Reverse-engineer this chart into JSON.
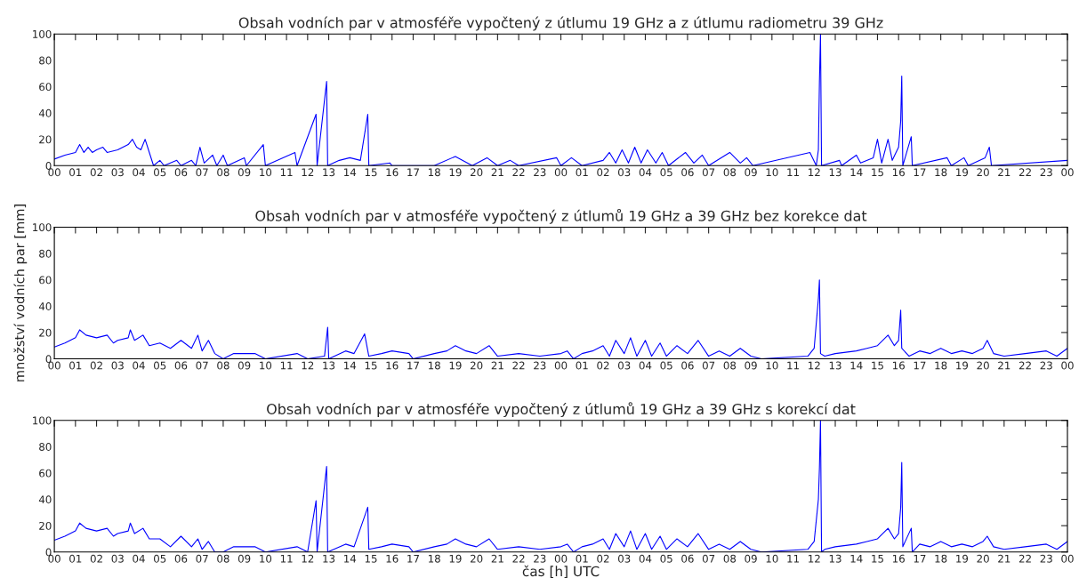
{
  "chart_data": [
    {
      "type": "line",
      "title": "Obsah vodních par v atmosféře vypočtený z útlumu 19 GHz a z útlumu radiometru 39 GHz",
      "grid": false,
      "legend": false,
      "xlim": [
        0,
        48
      ],
      "ylim": [
        0,
        100
      ],
      "yticks": [
        0,
        20,
        40,
        60,
        80,
        100
      ],
      "xticks": [
        {
          "value": 0,
          "label": "00"
        },
        {
          "value": 1,
          "label": "01"
        },
        {
          "value": 2,
          "label": "02"
        },
        {
          "value": 3,
          "label": "03"
        },
        {
          "value": 4,
          "label": "04"
        },
        {
          "value": 5,
          "label": "05"
        },
        {
          "value": 6,
          "label": "06"
        },
        {
          "value": 7,
          "label": "07"
        },
        {
          "value": 8,
          "label": "08"
        },
        {
          "value": 9,
          "label": "09"
        },
        {
          "value": 10,
          "label": "10"
        },
        {
          "value": 11,
          "label": "11"
        },
        {
          "value": 12,
          "label": "12"
        },
        {
          "value": 13,
          "label": "13"
        },
        {
          "value": 14,
          "label": "14"
        },
        {
          "value": 15,
          "label": "15"
        },
        {
          "value": 16,
          "label": "16"
        },
        {
          "value": 17,
          "label": "17"
        },
        {
          "value": 18,
          "label": "18"
        },
        {
          "value": 19,
          "label": "19"
        },
        {
          "value": 20,
          "label": "20"
        },
        {
          "value": 21,
          "label": "21"
        },
        {
          "value": 22,
          "label": "22"
        },
        {
          "value": 23,
          "label": "23"
        },
        {
          "value": 24,
          "label": "00"
        },
        {
          "value": 25,
          "label": "01"
        },
        {
          "value": 26,
          "label": "02"
        },
        {
          "value": 27,
          "label": "03"
        },
        {
          "value": 28,
          "label": "04"
        },
        {
          "value": 29,
          "label": "05"
        },
        {
          "value": 30,
          "label": "06"
        },
        {
          "value": 31,
          "label": "07"
        },
        {
          "value": 32,
          "label": "08"
        },
        {
          "value": 33,
          "label": "09"
        },
        {
          "value": 34,
          "label": "10"
        },
        {
          "value": 35,
          "label": "11"
        },
        {
          "value": 36,
          "label": "12"
        },
        {
          "value": 37,
          "label": "13"
        },
        {
          "value": 38,
          "label": "14"
        },
        {
          "value": 39,
          "label": "15"
        },
        {
          "value": 40,
          "label": "16"
        },
        {
          "value": 41,
          "label": "17"
        },
        {
          "value": 42,
          "label": "18"
        },
        {
          "value": 43,
          "label": "19"
        },
        {
          "value": 44,
          "label": "20"
        },
        {
          "value": 45,
          "label": "21"
        },
        {
          "value": 46,
          "label": "22"
        },
        {
          "value": 47,
          "label": "23"
        },
        {
          "value": 48,
          "label": "00"
        }
      ],
      "series": [
        {
          "color": "#0000ff",
          "x": [
            0,
            0.5,
            1,
            1.2,
            1.4,
            1.6,
            1.8,
            2,
            2.3,
            2.5,
            3,
            3.5,
            3.7,
            3.9,
            4.1,
            4.3,
            4.5,
            4.7,
            5,
            5.2,
            5.8,
            6,
            6.5,
            6.7,
            6.9,
            7.1,
            7.5,
            7.7,
            8,
            8.2,
            9,
            9.1,
            9.9,
            10,
            11.4,
            11.5,
            12.4,
            12.45,
            12.9,
            12.95,
            13.5,
            14,
            14.5,
            14.85,
            14.9,
            15.9,
            16,
            18,
            19,
            19.8,
            20.5,
            21,
            21.6,
            22,
            23.8,
            24,
            24.5,
            25,
            26,
            26.3,
            26.6,
            26.9,
            27.2,
            27.5,
            27.8,
            28.1,
            28.5,
            28.8,
            29.1,
            29.9,
            30.3,
            30.7,
            31,
            32,
            32.5,
            32.8,
            33.1,
            35.8,
            36.1,
            36.2,
            36.25,
            36.3,
            36.35,
            37.2,
            37.3,
            38,
            38.2,
            38.8,
            39,
            39.2,
            39.5,
            39.7,
            40,
            40.1,
            40.15,
            40.2,
            40.6,
            40.65,
            42.3,
            42.5,
            43.1,
            43.3,
            44.1,
            44.3,
            44.4,
            48
          ],
          "values": [
            5,
            8,
            10,
            16,
            10,
            14,
            10,
            12,
            14,
            10,
            12,
            16,
            20,
            14,
            12,
            20,
            10,
            0,
            4,
            0,
            4,
            0,
            4,
            0,
            14,
            2,
            8,
            0,
            8,
            0,
            6,
            0,
            16,
            0,
            10,
            0,
            39,
            0,
            64,
            0,
            4,
            6,
            4,
            39,
            0,
            2,
            0,
            0,
            7,
            0,
            6,
            0,
            4,
            0,
            6,
            0,
            6,
            0,
            4,
            10,
            2,
            12,
            2,
            14,
            2,
            12,
            2,
            10,
            0,
            10,
            2,
            8,
            0,
            10,
            2,
            6,
            0,
            10,
            0,
            12,
            64,
            100,
            0,
            4,
            0,
            8,
            2,
            6,
            20,
            2,
            20,
            4,
            14,
            34,
            68,
            0,
            22,
            0,
            6,
            0,
            6,
            0,
            6,
            14,
            0,
            4
          ]
        }
      ]
    },
    {
      "type": "line",
      "title": "Obsah vodních par v atmosféře vypočtený z útlumů 19 GHz a 39 GHz bez korekce dat",
      "ylabel": "množství vodních par [mm]",
      "grid": false,
      "legend": false,
      "xlim": [
        0,
        48
      ],
      "ylim": [
        0,
        100
      ],
      "yticks": [
        0,
        20,
        40,
        60,
        80,
        100
      ],
      "xticks": [
        {
          "value": 0,
          "label": "00"
        },
        {
          "value": 1,
          "label": "01"
        },
        {
          "value": 2,
          "label": "02"
        },
        {
          "value": 3,
          "label": "03"
        },
        {
          "value": 4,
          "label": "04"
        },
        {
          "value": 5,
          "label": "05"
        },
        {
          "value": 6,
          "label": "06"
        },
        {
          "value": 7,
          "label": "07"
        },
        {
          "value": 8,
          "label": "08"
        },
        {
          "value": 9,
          "label": "09"
        },
        {
          "value": 10,
          "label": "10"
        },
        {
          "value": 11,
          "label": "11"
        },
        {
          "value": 12,
          "label": "12"
        },
        {
          "value": 13,
          "label": "13"
        },
        {
          "value": 14,
          "label": "14"
        },
        {
          "value": 15,
          "label": "15"
        },
        {
          "value": 16,
          "label": "16"
        },
        {
          "value": 17,
          "label": "17"
        },
        {
          "value": 18,
          "label": "18"
        },
        {
          "value": 19,
          "label": "19"
        },
        {
          "value": 20,
          "label": "20"
        },
        {
          "value": 21,
          "label": "21"
        },
        {
          "value": 22,
          "label": "22"
        },
        {
          "value": 23,
          "label": "23"
        },
        {
          "value": 24,
          "label": "00"
        },
        {
          "value": 25,
          "label": "01"
        },
        {
          "value": 26,
          "label": "02"
        },
        {
          "value": 27,
          "label": "03"
        },
        {
          "value": 28,
          "label": "04"
        },
        {
          "value": 29,
          "label": "05"
        },
        {
          "value": 30,
          "label": "06"
        },
        {
          "value": 31,
          "label": "07"
        },
        {
          "value": 32,
          "label": "08"
        },
        {
          "value": 33,
          "label": "09"
        },
        {
          "value": 34,
          "label": "10"
        },
        {
          "value": 35,
          "label": "11"
        },
        {
          "value": 36,
          "label": "12"
        },
        {
          "value": 37,
          "label": "13"
        },
        {
          "value": 38,
          "label": "14"
        },
        {
          "value": 39,
          "label": "15"
        },
        {
          "value": 40,
          "label": "16"
        },
        {
          "value": 41,
          "label": "17"
        },
        {
          "value": 42,
          "label": "18"
        },
        {
          "value": 43,
          "label": "19"
        },
        {
          "value": 44,
          "label": "20"
        },
        {
          "value": 45,
          "label": "21"
        },
        {
          "value": 46,
          "label": "22"
        },
        {
          "value": 47,
          "label": "23"
        },
        {
          "value": 48,
          "label": "00"
        }
      ],
      "series": [
        {
          "color": "#0000ff",
          "x": [
            0,
            0.5,
            1,
            1.2,
            1.5,
            2,
            2.5,
            2.8,
            3,
            3.5,
            3.6,
            3.8,
            4.2,
            4.5,
            5,
            5.5,
            6,
            6.5,
            6.8,
            7,
            7.3,
            7.6,
            8,
            8.5,
            9.5,
            10,
            11.5,
            12,
            12.8,
            12.95,
            13,
            13.8,
            14.2,
            14.7,
            14.9,
            15.5,
            16,
            16.8,
            17,
            18,
            18.6,
            19,
            19.5,
            20,
            20.6,
            21,
            22,
            23,
            24,
            24.3,
            24.6,
            25,
            25.5,
            26,
            26.3,
            26.6,
            27,
            27.3,
            27.6,
            28,
            28.3,
            28.7,
            29,
            29.5,
            30,
            30.5,
            31,
            31.5,
            32,
            32.5,
            33,
            33.5,
            35.7,
            36,
            36.2,
            36.25,
            36.3,
            36.5,
            37,
            38,
            38.5,
            39,
            39.5,
            39.8,
            40,
            40.1,
            40.15,
            40.5,
            41,
            41.5,
            42,
            42.5,
            43,
            43.5,
            44,
            44.2,
            44.5,
            45,
            46,
            47,
            47.5,
            48
          ],
          "values": [
            9,
            12,
            16,
            22,
            18,
            16,
            18,
            12,
            14,
            16,
            22,
            14,
            18,
            10,
            12,
            8,
            14,
            8,
            18,
            6,
            14,
            4,
            0,
            4,
            4,
            0,
            4,
            0,
            2,
            24,
            0,
            6,
            4,
            19,
            2,
            4,
            6,
            4,
            0,
            4,
            6,
            10,
            6,
            4,
            10,
            2,
            4,
            2,
            4,
            6,
            0,
            4,
            6,
            10,
            2,
            14,
            4,
            16,
            2,
            14,
            2,
            12,
            2,
            10,
            4,
            14,
            2,
            6,
            2,
            8,
            2,
            0,
            2,
            8,
            46,
            60,
            4,
            2,
            4,
            6,
            8,
            10,
            18,
            10,
            14,
            37,
            8,
            2,
            6,
            4,
            8,
            4,
            6,
            4,
            8,
            14,
            4,
            2,
            4,
            6,
            2,
            8
          ]
        }
      ]
    },
    {
      "type": "line",
      "title": "Obsah vodních par v atmosféře vypočtený z útlumů 19 GHz a 39 GHz s korekcí dat",
      "xlabel": "čas [h] UTC",
      "grid": false,
      "legend": false,
      "xlim": [
        0,
        48
      ],
      "ylim": [
        0,
        100
      ],
      "yticks": [
        0,
        20,
        40,
        60,
        80,
        100
      ],
      "xticks": [
        {
          "value": 0,
          "label": "00"
        },
        {
          "value": 1,
          "label": "01"
        },
        {
          "value": 2,
          "label": "02"
        },
        {
          "value": 3,
          "label": "03"
        },
        {
          "value": 4,
          "label": "04"
        },
        {
          "value": 5,
          "label": "05"
        },
        {
          "value": 6,
          "label": "06"
        },
        {
          "value": 7,
          "label": "07"
        },
        {
          "value": 8,
          "label": "08"
        },
        {
          "value": 9,
          "label": "09"
        },
        {
          "value": 10,
          "label": "10"
        },
        {
          "value": 11,
          "label": "11"
        },
        {
          "value": 12,
          "label": "12"
        },
        {
          "value": 13,
          "label": "13"
        },
        {
          "value": 14,
          "label": "14"
        },
        {
          "value": 15,
          "label": "15"
        },
        {
          "value": 16,
          "label": "16"
        },
        {
          "value": 17,
          "label": "17"
        },
        {
          "value": 18,
          "label": "18"
        },
        {
          "value": 19,
          "label": "19"
        },
        {
          "value": 20,
          "label": "20"
        },
        {
          "value": 21,
          "label": "21"
        },
        {
          "value": 22,
          "label": "22"
        },
        {
          "value": 23,
          "label": "23"
        },
        {
          "value": 24,
          "label": "00"
        },
        {
          "value": 25,
          "label": "01"
        },
        {
          "value": 26,
          "label": "02"
        },
        {
          "value": 27,
          "label": "03"
        },
        {
          "value": 28,
          "label": "04"
        },
        {
          "value": 29,
          "label": "05"
        },
        {
          "value": 30,
          "label": "06"
        },
        {
          "value": 31,
          "label": "07"
        },
        {
          "value": 32,
          "label": "08"
        },
        {
          "value": 33,
          "label": "09"
        },
        {
          "value": 34,
          "label": "10"
        },
        {
          "value": 35,
          "label": "11"
        },
        {
          "value": 36,
          "label": "12"
        },
        {
          "value": 37,
          "label": "13"
        },
        {
          "value": 38,
          "label": "14"
        },
        {
          "value": 39,
          "label": "15"
        },
        {
          "value": 40,
          "label": "16"
        },
        {
          "value": 41,
          "label": "17"
        },
        {
          "value": 42,
          "label": "18"
        },
        {
          "value": 43,
          "label": "19"
        },
        {
          "value": 44,
          "label": "20"
        },
        {
          "value": 45,
          "label": "21"
        },
        {
          "value": 46,
          "label": "22"
        },
        {
          "value": 47,
          "label": "23"
        },
        {
          "value": 48,
          "label": "00"
        }
      ],
      "series": [
        {
          "color": "#0000ff",
          "x": [
            0,
            0.5,
            1,
            1.2,
            1.5,
            2,
            2.5,
            2.8,
            3,
            3.5,
            3.6,
            3.8,
            4.2,
            4.5,
            5,
            5.5,
            6,
            6.5,
            6.8,
            7,
            7.3,
            7.6,
            8,
            8.5,
            9.5,
            10,
            11.5,
            12,
            12.4,
            12.45,
            12.9,
            12.95,
            13.8,
            14.2,
            14.85,
            14.9,
            15.5,
            16,
            16.8,
            17,
            18,
            18.6,
            19,
            19.5,
            20,
            20.6,
            21,
            22,
            23,
            24,
            24.3,
            24.6,
            25,
            25.5,
            26,
            26.3,
            26.6,
            27,
            27.3,
            27.6,
            28,
            28.3,
            28.7,
            29,
            29.5,
            30,
            30.5,
            31,
            31.5,
            32,
            32.5,
            33,
            33.5,
            35.7,
            36,
            36.2,
            36.25,
            36.3,
            36.35,
            36.5,
            37,
            38,
            38.5,
            39,
            39.5,
            39.8,
            40,
            40.1,
            40.15,
            40.2,
            40.6,
            40.65,
            41,
            41.5,
            42,
            42.5,
            43,
            43.5,
            44,
            44.2,
            44.5,
            45,
            46,
            47,
            47.5,
            48
          ],
          "values": [
            9,
            12,
            16,
            22,
            18,
            16,
            18,
            12,
            14,
            16,
            22,
            14,
            18,
            10,
            10,
            4,
            12,
            4,
            10,
            2,
            8,
            0,
            0,
            4,
            4,
            0,
            4,
            0,
            39,
            0,
            65,
            0,
            6,
            4,
            34,
            2,
            4,
            6,
            4,
            0,
            4,
            6,
            10,
            6,
            4,
            10,
            2,
            4,
            2,
            4,
            6,
            0,
            4,
            6,
            10,
            2,
            14,
            4,
            16,
            2,
            14,
            2,
            12,
            2,
            10,
            4,
            14,
            2,
            6,
            2,
            8,
            2,
            0,
            2,
            8,
            40,
            64,
            100,
            0,
            2,
            4,
            6,
            8,
            10,
            18,
            10,
            14,
            34,
            68,
            4,
            18,
            0,
            6,
            4,
            8,
            4,
            6,
            4,
            8,
            12,
            4,
            2,
            4,
            6,
            2,
            8
          ]
        }
      ]
    }
  ]
}
